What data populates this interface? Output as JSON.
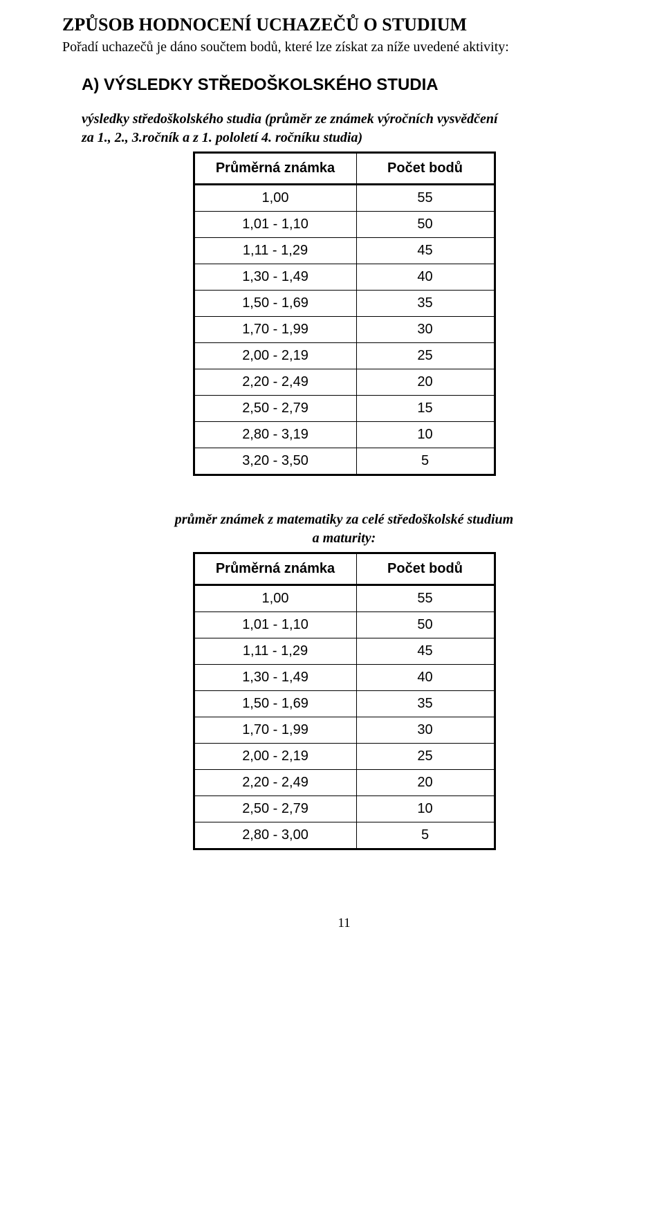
{
  "heading": "ZPŮSOB HODNOCENÍ UCHAZEČŮ O STUDIUM",
  "intro": "Pořadí uchazečů je dáno součtem bodů, které lze získat za níže uvedené aktivity:",
  "section_a_title": "A) VÝSLEDKY STŘEDOŠKOLSKÉHO STUDIA",
  "subheading1_line1": "výsledky středoškolského studia (průměr ze známek výročních vysvědčení",
  "subheading1_line2": "za 1., 2., 3.ročník a z 1. pololetí 4. ročníku studia)",
  "subheading2_line1": "průměr známek z matematiky za celé středoškolské studium",
  "subheading2_line2": "a maturity:",
  "col_headers": {
    "grade": "Průměrná známka",
    "points": "Počet bodů"
  },
  "table1": {
    "rows": [
      {
        "g": "1,00",
        "p": "55"
      },
      {
        "g": "1,01 - 1,10",
        "p": "50"
      },
      {
        "g": "1,11 - 1,29",
        "p": "45"
      },
      {
        "g": "1,30 - 1,49",
        "p": "40"
      },
      {
        "g": "1,50 - 1,69",
        "p": "35"
      },
      {
        "g": "1,70 - 1,99",
        "p": "30"
      },
      {
        "g": "2,00 - 2,19",
        "p": "25"
      },
      {
        "g": "2,20 - 2,49",
        "p": "20"
      },
      {
        "g": "2,50 - 2,79",
        "p": "15"
      },
      {
        "g": "2,80 - 3,19",
        "p": "10"
      },
      {
        "g": "3,20 - 3,50",
        "p": "5"
      }
    ]
  },
  "table2": {
    "rows": [
      {
        "g": "1,00",
        "p": "55"
      },
      {
        "g": "1,01 - 1,10",
        "p": "50"
      },
      {
        "g": "1,11 - 1,29",
        "p": "45"
      },
      {
        "g": "1,30 - 1,49",
        "p": "40"
      },
      {
        "g": "1,50 - 1,69",
        "p": "35"
      },
      {
        "g": "1,70 - 1,99",
        "p": "30"
      },
      {
        "g": "2,00 - 2,19",
        "p": "25"
      },
      {
        "g": "2,20 - 2,49",
        "p": "20"
      },
      {
        "g": "2,50 - 2,79",
        "p": "10"
      },
      {
        "g": "2,80 - 3,00",
        "p": "5"
      }
    ]
  },
  "page_number": "11"
}
